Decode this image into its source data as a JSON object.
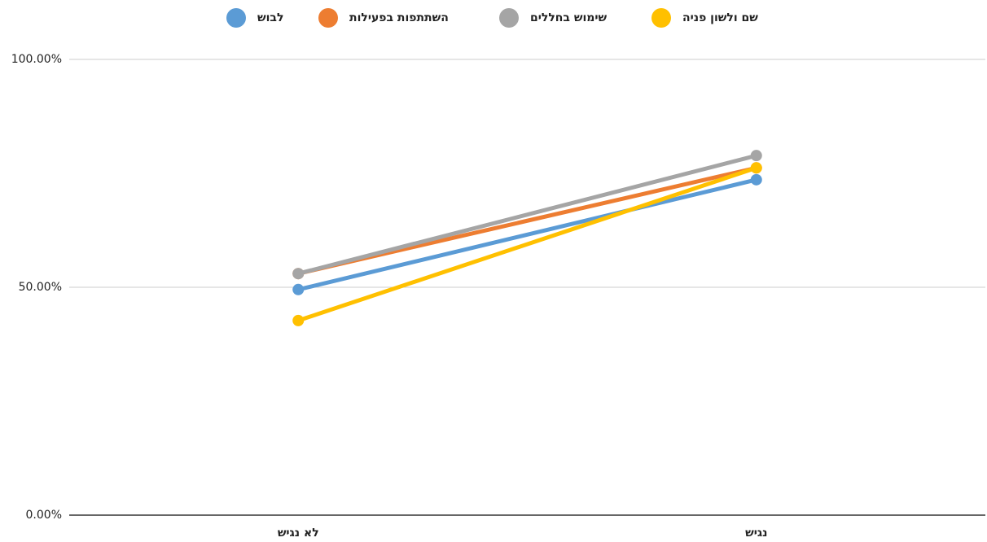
{
  "chart_data": {
    "type": "line",
    "categories": [
      "לא נגיש",
      "נגיש"
    ],
    "series": [
      {
        "name": "לבוש",
        "color": "#5b9bd5",
        "values": [
          49.5,
          73.6
        ]
      },
      {
        "name": "השתתפות בפעילות",
        "color": "#ed7d31",
        "values": [
          53.0,
          76.2
        ]
      },
      {
        "name": "שימוש בחללים",
        "color": "#a5a5a5",
        "values": [
          53.0,
          78.9
        ]
      },
      {
        "name": "שם ולשון פניה",
        "color": "#ffc000",
        "values": [
          42.7,
          76.2
        ]
      }
    ],
    "ylim": [
      0,
      100
    ],
    "yticks": [
      {
        "value": 0,
        "label": "0.00%"
      },
      {
        "value": 50,
        "label": "50.00%"
      },
      {
        "value": 100,
        "label": "100.00%"
      }
    ],
    "grid": true,
    "legend": "top"
  }
}
